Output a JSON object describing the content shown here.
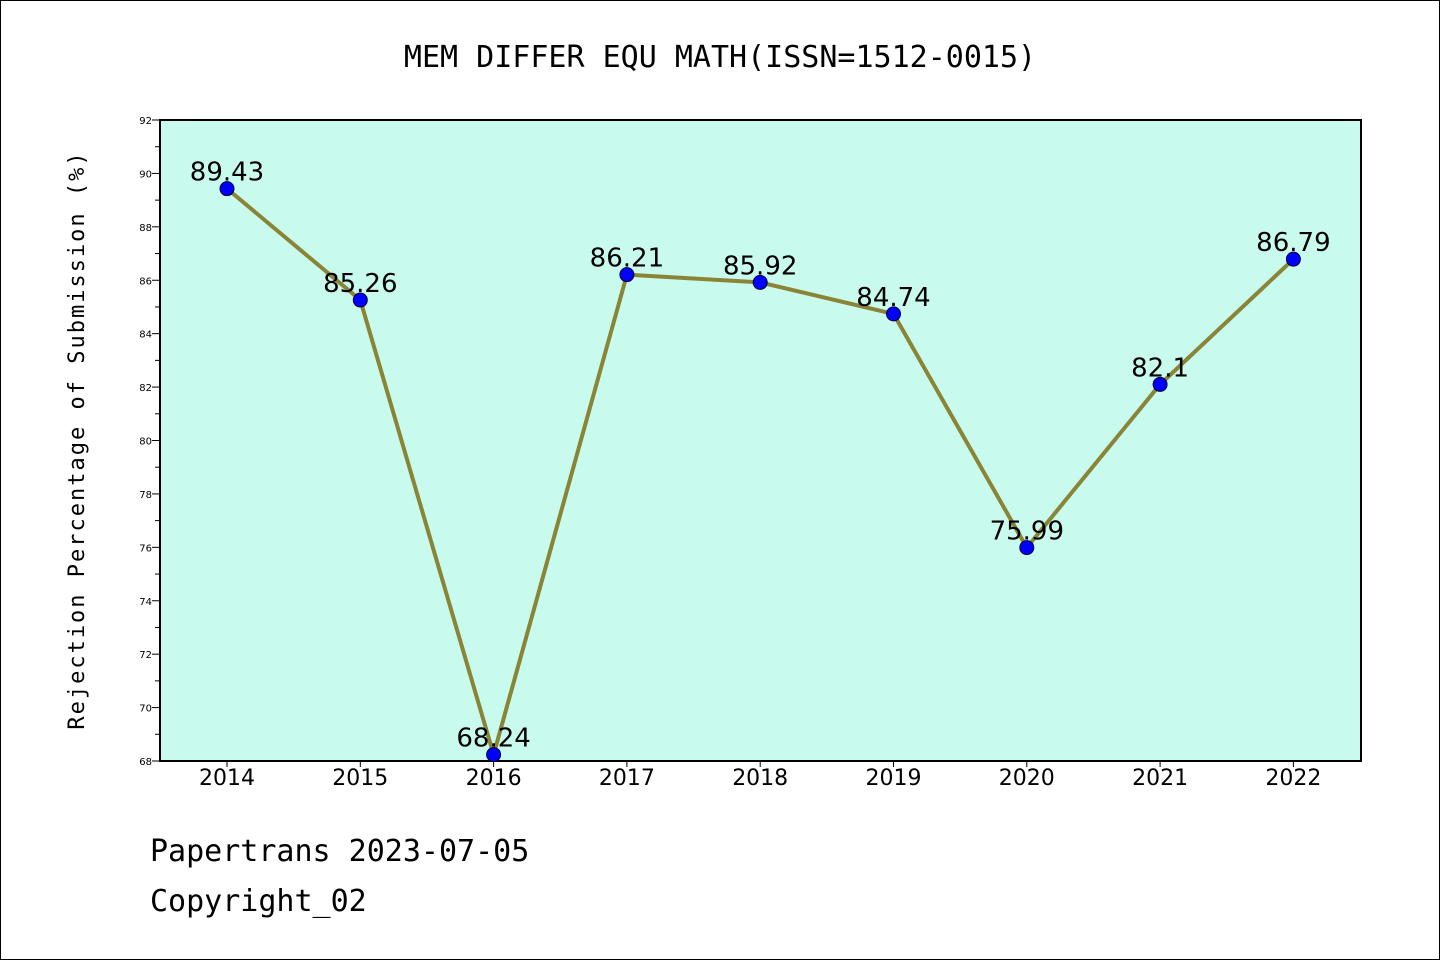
{
  "chart_data": {
    "type": "line",
    "title": "MEM DIFFER EQU MATH(ISSN=1512-0015)",
    "ylabel": "Rejection Percentage of Submission (%)",
    "xlabel": "",
    "categories": [
      "2014",
      "2015",
      "2016",
      "2017",
      "2018",
      "2019",
      "2020",
      "2021",
      "2022"
    ],
    "values": [
      89.43,
      85.26,
      68.24,
      86.21,
      85.92,
      84.74,
      75.99,
      82.1,
      86.79
    ],
    "data_labels": [
      "89.43",
      "85.26",
      "68.24",
      "86.21",
      "85.92",
      "84.74",
      "75.99",
      "82.1",
      "86.79"
    ],
    "ylim": [
      68,
      92
    ],
    "yticks": [
      "68",
      "70",
      "72",
      "74",
      "76",
      "78",
      "80",
      "82",
      "84",
      "86",
      "88",
      "90",
      "92"
    ],
    "colors": {
      "plot_bg": "#c8fbee",
      "line": "#8a8436",
      "marker": "#0000ff"
    },
    "grid": false,
    "legend": "none"
  },
  "footer": {
    "line1": "Papertrans 2023-07-05",
    "line2": "Copyright_02"
  }
}
